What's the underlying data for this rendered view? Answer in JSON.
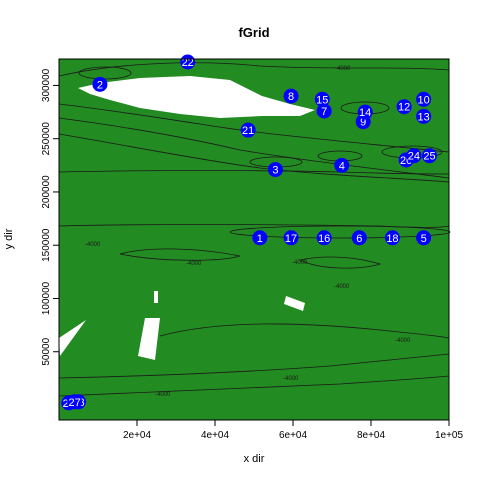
{
  "chart_data": {
    "type": "scatter",
    "title": "fGrid",
    "xlabel": "x dir",
    "ylabel": "y dir",
    "xlim": [
      0,
      100000
    ],
    "ylim": [
      0,
      322000
    ],
    "x_ticks": [
      20000,
      40000,
      60000,
      80000,
      100000
    ],
    "x_tick_labels": [
      "2e+04",
      "4e+04",
      "6e+04",
      "8e+04",
      "1e+05"
    ],
    "y_ticks": [
      50000,
      100000,
      150000,
      200000,
      250000,
      300000
    ],
    "y_tick_labels": [
      "50000",
      "100000",
      "150000",
      "200000",
      "250000",
      "300000"
    ],
    "grid": false,
    "background_color": "#228b22",
    "land_color": "#ffffff",
    "point_color": "#0000ff",
    "contour_label": "-4000",
    "points": [
      {
        "label": "1",
        "x": 51500,
        "y": 157000
      },
      {
        "label": "2",
        "x": 10500,
        "y": 301000
      },
      {
        "label": "3",
        "x": 55500,
        "y": 221000
      },
      {
        "label": "4",
        "x": 72500,
        "y": 225000
      },
      {
        "label": "5",
        "x": 93500,
        "y": 157000
      },
      {
        "label": "6",
        "x": 77000,
        "y": 157000
      },
      {
        "label": "7",
        "x": 68000,
        "y": 276000
      },
      {
        "label": "8",
        "x": 59500,
        "y": 290000
      },
      {
        "label": "9",
        "x": 78000,
        "y": 266000
      },
      {
        "label": "10",
        "x": 93500,
        "y": 287000
      },
      {
        "label": "12",
        "x": 88500,
        "y": 280000
      },
      {
        "label": "13",
        "x": 93500,
        "y": 271000
      },
      {
        "label": "14",
        "x": 78500,
        "y": 275000
      },
      {
        "label": "15",
        "x": 67500,
        "y": 287000
      },
      {
        "label": "16",
        "x": 68000,
        "y": 157000
      },
      {
        "label": "17",
        "x": 59500,
        "y": 157000
      },
      {
        "label": "18",
        "x": 85500,
        "y": 157000
      },
      {
        "label": "20",
        "x": 89000,
        "y": 230000
      },
      {
        "label": "21",
        "x": 48500,
        "y": 258000
      },
      {
        "label": "22",
        "x": 33000,
        "y": 322000
      },
      {
        "label": "23",
        "x": 5000,
        "y": 3000
      },
      {
        "label": "24",
        "x": 91000,
        "y": 234000
      },
      {
        "label": "25",
        "x": 95000,
        "y": 234000
      },
      {
        "label": "26",
        "x": 2500,
        "y": 2000
      },
      {
        "label": "27",
        "x": 4000,
        "y": 3000
      }
    ]
  }
}
